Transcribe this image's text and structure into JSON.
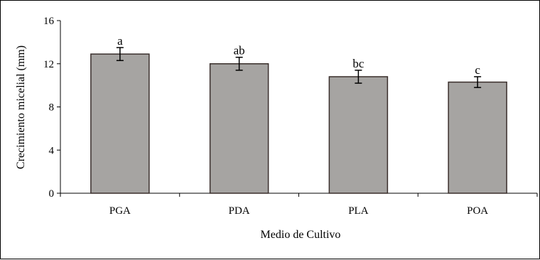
{
  "chart_data": {
    "type": "bar",
    "title": "",
    "xlabel": "Medio de Cultivo",
    "ylabel": "Crecimiento micelial (mm)",
    "categories": [
      "PGA",
      "PDA",
      "PLA",
      "POA"
    ],
    "values": [
      12.9,
      12.0,
      10.8,
      10.3
    ],
    "error": [
      0.6,
      0.6,
      0.6,
      0.5
    ],
    "annotations": [
      "a",
      "ab",
      "bc",
      "c"
    ],
    "ylim": [
      0,
      16
    ],
    "yticks": [
      0,
      4,
      8,
      12,
      16
    ],
    "grid": false,
    "legend": "none",
    "colors": {
      "bar_fill": "#a6a4a2",
      "bar_stroke": "#3a2f2c",
      "axis": "#000000"
    }
  }
}
